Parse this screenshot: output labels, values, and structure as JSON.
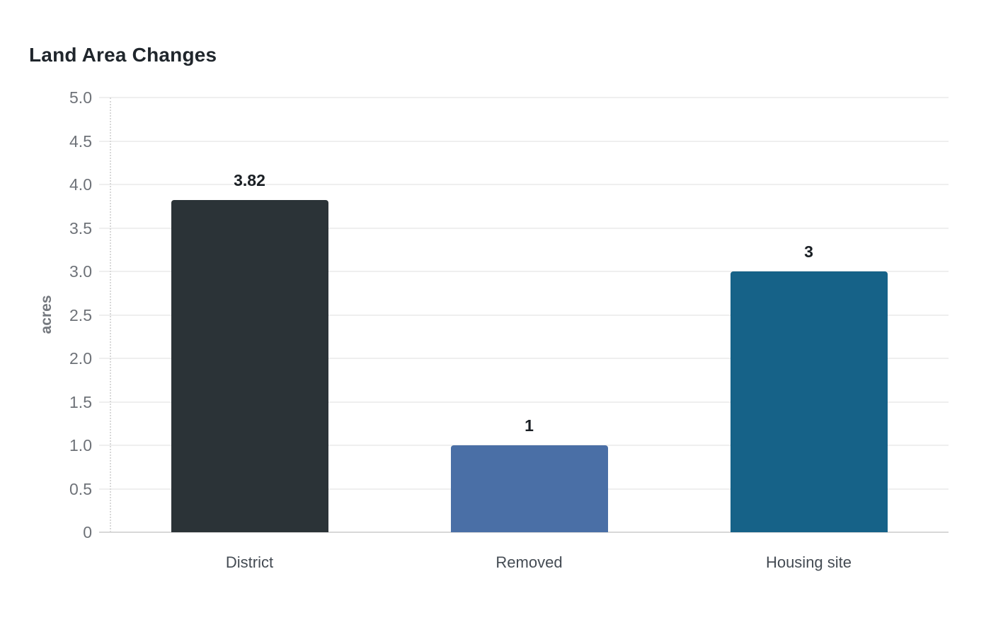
{
  "page": {
    "background": "#ffffff"
  },
  "chart_data": {
    "type": "bar",
    "title": "Land Area Changes",
    "xlabel": "",
    "ylabel": "acres",
    "categories": [
      "District",
      "Removed",
      "Housing site"
    ],
    "values": [
      3.82,
      1,
      3
    ],
    "value_labels": [
      "3.82",
      "1",
      "3"
    ],
    "bar_colors": [
      "#2b3337",
      "#4a6fa6",
      "#166288"
    ],
    "ylim": [
      0,
      5
    ],
    "ytick_step": 0.5,
    "ytick_labels": [
      "0",
      "0.5",
      "1.0",
      "1.5",
      "2.0",
      "2.5",
      "3.0",
      "3.5",
      "4.0",
      "4.5",
      "5.0"
    ],
    "grid": true,
    "legend": "none",
    "colors": {
      "title": "#20262c",
      "tick_label": "#6e7278",
      "x_label": "#444b53",
      "value_label": "#1a1f24",
      "grid": "#efefef",
      "baseline": "#d8d8d8",
      "axis_dotted": "#d8d8d8",
      "background": "#ffffff"
    }
  }
}
